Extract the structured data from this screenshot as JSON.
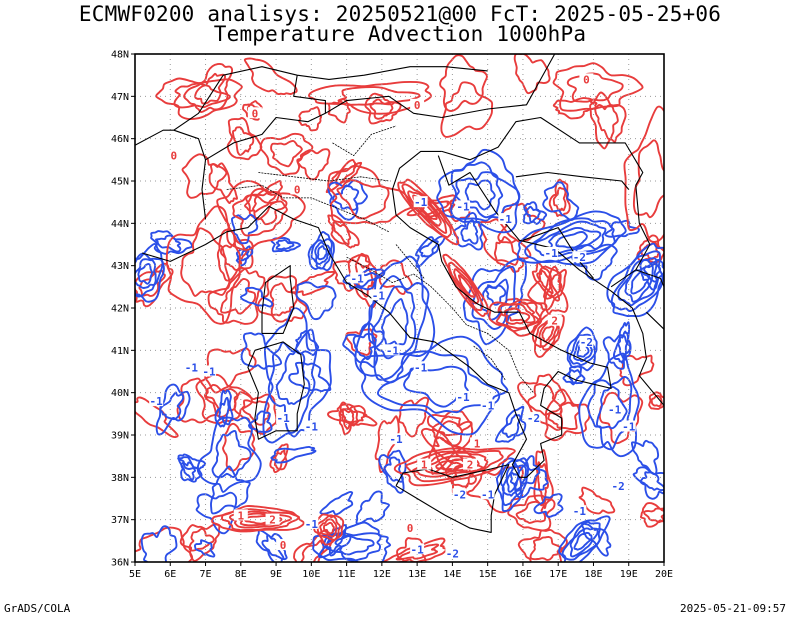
{
  "header": {
    "title_line1": "ECMWF0200 analisys: 20250521@00 FcT: 2025-05-25+06",
    "title_line2": "Temperature Advection 1000hPa"
  },
  "footer": {
    "left": "GrADS/COLA",
    "right": "2025-05-21-09:57"
  },
  "map": {
    "lat_labels": [
      "36N",
      "37N",
      "38N",
      "39N",
      "40N",
      "41N",
      "42N",
      "43N",
      "44N",
      "45N",
      "46N",
      "47N",
      "48N"
    ],
    "lon_labels": [
      "5E",
      "6E",
      "7E",
      "8E",
      "9E",
      "10E",
      "11E",
      "12E",
      "13E",
      "14E",
      "15E",
      "16E",
      "17E",
      "18E",
      "19E",
      "20E"
    ],
    "lat_range": [
      36,
      48
    ],
    "lon_range": [
      5,
      20
    ],
    "grid": "dotted",
    "colors": {
      "positive": "#e83c3c",
      "negative": "#2b4fe8",
      "coast": "#000000",
      "grid": "#9a9a9a"
    },
    "contour_labels": [
      {
        "text": "0",
        "lon": 8.4,
        "lat": 46.6,
        "sign": "pos"
      },
      {
        "text": "0",
        "lon": 13.0,
        "lat": 46.8,
        "sign": "pos"
      },
      {
        "text": "0",
        "lon": 9.6,
        "lat": 44.8,
        "sign": "pos"
      },
      {
        "text": "0",
        "lon": 6.1,
        "lat": 45.6,
        "sign": "pos"
      },
      {
        "text": "-1",
        "lon": 13.1,
        "lat": 44.5,
        "sign": "neg"
      },
      {
        "text": "-1",
        "lon": 14.3,
        "lat": 44.4,
        "sign": "neg"
      },
      {
        "text": "-1",
        "lon": 15.5,
        "lat": 44.1,
        "sign": "neg"
      },
      {
        "text": "-1",
        "lon": 16.8,
        "lat": 43.3,
        "sign": "neg"
      },
      {
        "text": "-2",
        "lon": 17.6,
        "lat": 43.2,
        "sign": "neg"
      },
      {
        "text": "-1",
        "lon": 11.3,
        "lat": 42.7,
        "sign": "neg"
      },
      {
        "text": "-1",
        "lon": 11.9,
        "lat": 42.3,
        "sign": "neg"
      },
      {
        "text": "-1",
        "lon": 6.6,
        "lat": 40.6,
        "sign": "neg"
      },
      {
        "text": "-1",
        "lon": 7.1,
        "lat": 40.5,
        "sign": "neg"
      },
      {
        "text": "-1",
        "lon": 12.3,
        "lat": 41.0,
        "sign": "neg"
      },
      {
        "text": "-1",
        "lon": 13.1,
        "lat": 40.6,
        "sign": "neg"
      },
      {
        "text": "-1",
        "lon": 9.2,
        "lat": 39.4,
        "sign": "neg"
      },
      {
        "text": "-1",
        "lon": 10.0,
        "lat": 39.2,
        "sign": "neg"
      },
      {
        "text": "-1",
        "lon": 12.4,
        "lat": 38.9,
        "sign": "neg"
      },
      {
        "text": "-1",
        "lon": 14.3,
        "lat": 39.9,
        "sign": "neg"
      },
      {
        "text": "-1",
        "lon": 15.0,
        "lat": 39.7,
        "sign": "neg"
      },
      {
        "text": "-2",
        "lon": 16.3,
        "lat": 39.4,
        "sign": "neg"
      },
      {
        "text": "-1",
        "lon": 15.0,
        "lat": 37.6,
        "sign": "neg"
      },
      {
        "text": "-2",
        "lon": 14.2,
        "lat": 37.6,
        "sign": "neg"
      },
      {
        "text": "-1",
        "lon": 13.0,
        "lat": 36.3,
        "sign": "neg"
      },
      {
        "text": "-2",
        "lon": 14.0,
        "lat": 36.2,
        "sign": "neg"
      },
      {
        "text": "-1",
        "lon": 18.6,
        "lat": 39.6,
        "sign": "neg"
      },
      {
        "text": "-1",
        "lon": 19.0,
        "lat": 39.2,
        "sign": "neg"
      },
      {
        "text": "-2",
        "lon": 18.7,
        "lat": 37.8,
        "sign": "neg"
      },
      {
        "text": "-1",
        "lon": 5.6,
        "lat": 39.8,
        "sign": "neg"
      },
      {
        "text": "1",
        "lon": 14.7,
        "lat": 38.8,
        "sign": "pos"
      },
      {
        "text": "1",
        "lon": 13.2,
        "lat": 38.3,
        "sign": "pos"
      },
      {
        "text": "2",
        "lon": 14.5,
        "lat": 38.3,
        "sign": "pos"
      },
      {
        "text": "1",
        "lon": 8.0,
        "lat": 37.1,
        "sign": "pos"
      },
      {
        "text": "2",
        "lon": 8.9,
        "lat": 37.0,
        "sign": "pos"
      },
      {
        "text": "0",
        "lon": 9.2,
        "lat": 36.4,
        "sign": "pos"
      },
      {
        "text": "-1",
        "lon": 10.0,
        "lat": 36.9,
        "sign": "neg"
      },
      {
        "text": "2",
        "lon": 16.9,
        "lat": 41.7,
        "sign": "pos"
      },
      {
        "text": "-2",
        "lon": 17.8,
        "lat": 41.2,
        "sign": "neg"
      },
      {
        "text": "0",
        "lon": 17.8,
        "lat": 47.4,
        "sign": "pos"
      },
      {
        "text": "0",
        "lon": 12.8,
        "lat": 36.8,
        "sign": "pos"
      },
      {
        "text": "-1",
        "lon": 17.6,
        "lat": 37.2,
        "sign": "neg"
      }
    ]
  }
}
